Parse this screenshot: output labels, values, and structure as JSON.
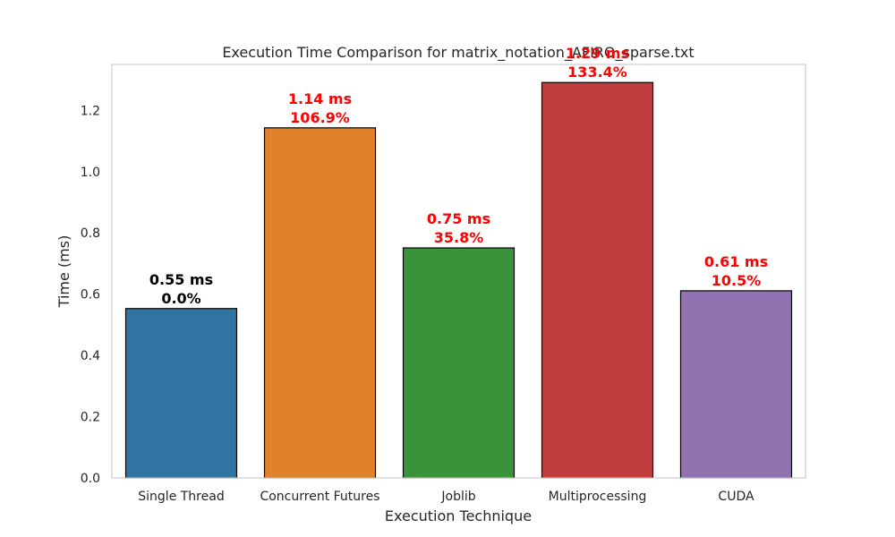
{
  "chart_data": {
    "type": "bar",
    "title": "Execution Time Comparison for matrix_notation_AFIRO_sparse.txt",
    "xlabel": "Execution Technique",
    "ylabel": "Time (ms)",
    "ylim": [
      0,
      1.35
    ],
    "yticks": [
      "0.0",
      "0.2",
      "0.4",
      "0.6",
      "0.8",
      "1.0",
      "1.2"
    ],
    "grid": false,
    "categories": [
      "Single Thread",
      "Concurrent Futures",
      "Joblib",
      "Multiprocessing",
      "CUDA"
    ],
    "values": [
      0.553,
      1.143,
      0.751,
      1.291,
      0.611
    ],
    "bar_colors": [
      "#3274a1",
      "#e1812c",
      "#3a923a",
      "#c03d3e",
      "#9372b2"
    ],
    "value_labels": [
      "0.55 ms",
      "1.14 ms",
      "0.75 ms",
      "1.29 ms",
      "0.61 ms"
    ],
    "percent_labels": [
      "0.0%",
      "106.9%",
      "35.8%",
      "133.4%",
      "10.5%"
    ],
    "label_colors": [
      "#000000",
      "#ff0000",
      "#ff0000",
      "#ff0000",
      "#ff0000"
    ]
  }
}
